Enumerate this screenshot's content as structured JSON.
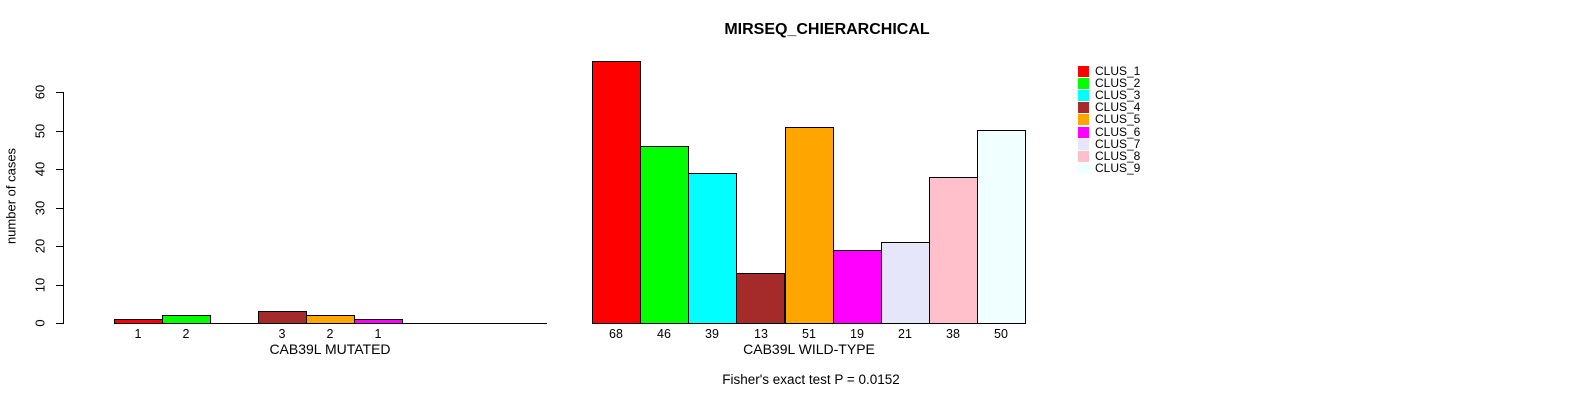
{
  "chart_data": {
    "type": "bar",
    "title": "MIRSEQ_CHIERARCHICAL",
    "ylabel": "number of cases",
    "ylim": [
      0,
      60
    ],
    "yticks": [
      0,
      10,
      20,
      30,
      40,
      50,
      60
    ],
    "grid": false,
    "legend_position": "right",
    "categories": [
      "CLUS_1",
      "CLUS_2",
      "CLUS_3",
      "CLUS_4",
      "CLUS_5",
      "CLUS_6",
      "CLUS_7",
      "CLUS_8",
      "CLUS_9"
    ],
    "colors": [
      "#FF0000",
      "#00FF00",
      "#00FFFF",
      "#A52A2A",
      "#FFA500",
      "#FF00FF",
      "#E6E6FA",
      "#FFC0CB",
      "#F0FFFF"
    ],
    "panels": [
      {
        "xlabel": "CAB39L MUTATED",
        "values": [
          1,
          2,
          0,
          3,
          2,
          1,
          0,
          0,
          0
        ],
        "bar_labels": [
          "1",
          "2",
          "",
          "3",
          "2",
          "1",
          "",
          "",
          ""
        ]
      },
      {
        "xlabel": "CAB39L WILD-TYPE",
        "values": [
          68,
          46,
          39,
          13,
          51,
          19,
          21,
          38,
          50
        ],
        "bar_labels": [
          "68",
          "46",
          "39",
          "13",
          "51",
          "19",
          "21",
          "38",
          "50"
        ]
      }
    ],
    "annotation": "Fisher's exact test P = 0.0152"
  }
}
